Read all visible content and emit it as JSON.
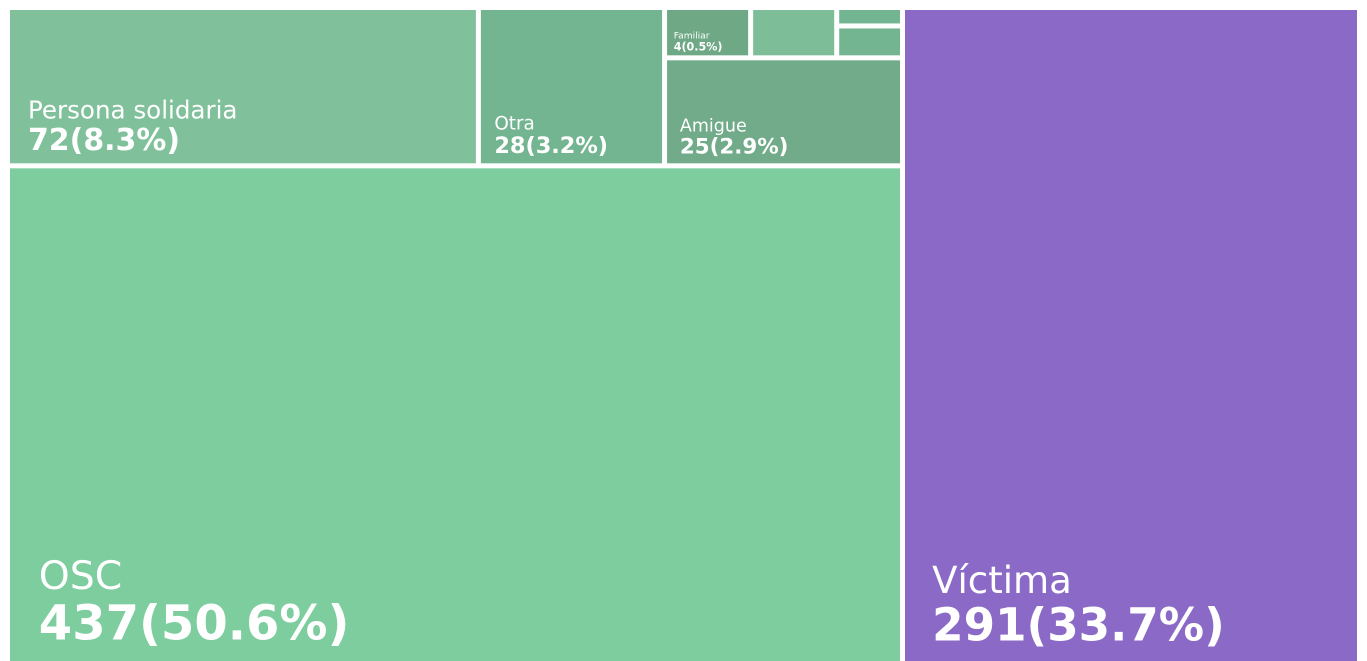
{
  "chart_data": {
    "type": "treemap",
    "categories": [
      "OSC",
      "Víctima",
      "Persona solidaria",
      "Otra",
      "Amigue",
      "Familiar",
      null,
      null,
      null
    ],
    "values": [
      437,
      291,
      72,
      28,
      25,
      4,
      4,
      2,
      1
    ],
    "value_labels": [
      "437(50.6%)",
      "291(33.7%)",
      "72(8.3%)",
      "28(3.2%)",
      "25(2.9%)",
      "4(0.5%)",
      null,
      null,
      null
    ],
    "colors": [
      "#7dcd9f",
      "#8a6ac6",
      "#80c19c",
      "#74b591",
      "#72ab8a",
      "#6ea885",
      "#7dbe98",
      "#74b591",
      "#74b591"
    ]
  }
}
